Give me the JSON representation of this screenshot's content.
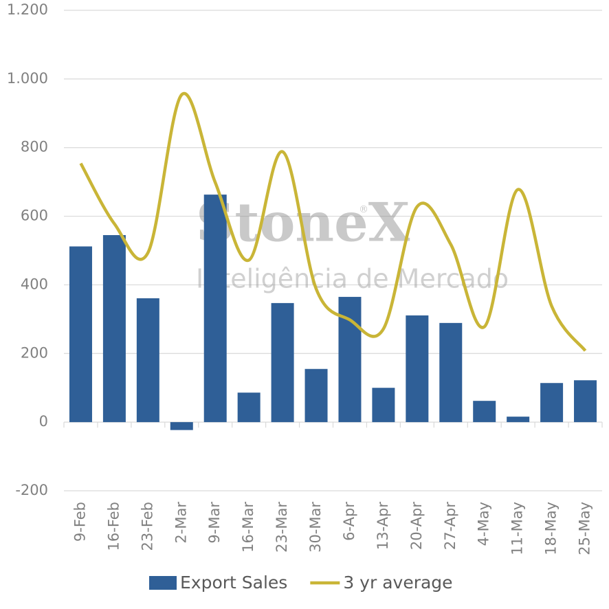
{
  "chart_data": {
    "type": "bar-line",
    "categories": [
      "9-Feb",
      "16-Feb",
      "23-Feb",
      "2-Mar",
      "9-Mar",
      "16-Mar",
      "23-Mar",
      "30-Mar",
      "6-Apr",
      "13-Apr",
      "20-Apr",
      "27-Apr",
      "4-May",
      "11-May",
      "18-May",
      "25-May"
    ],
    "series": [
      {
        "name": "Export Sales",
        "type": "bar",
        "color": "#2f5f97",
        "values": [
          512,
          545,
          361,
          -23,
          663,
          86,
          347,
          155,
          365,
          100,
          311,
          289,
          62,
          16,
          114,
          122
        ]
      },
      {
        "name": "3 yr average",
        "type": "line",
        "smooth": true,
        "color": "#c9b537",
        "values": [
          754,
          578,
          494,
          954,
          698,
          472,
          788,
          388,
          298,
          272,
          628,
          518,
          278,
          678,
          338,
          208
        ]
      }
    ],
    "ylim": [
      -200,
      1200
    ],
    "yticks": [
      -200,
      0,
      200,
      400,
      600,
      800,
      {
        "value": 1000,
        "label": "1.000"
      },
      {
        "value": 1200,
        "label": "1.200"
      }
    ],
    "grid": true,
    "legend": "bottom",
    "watermark": {
      "brand": "StoneX",
      "mark": "®",
      "tagline": "Inteligência de Mercado"
    }
  }
}
